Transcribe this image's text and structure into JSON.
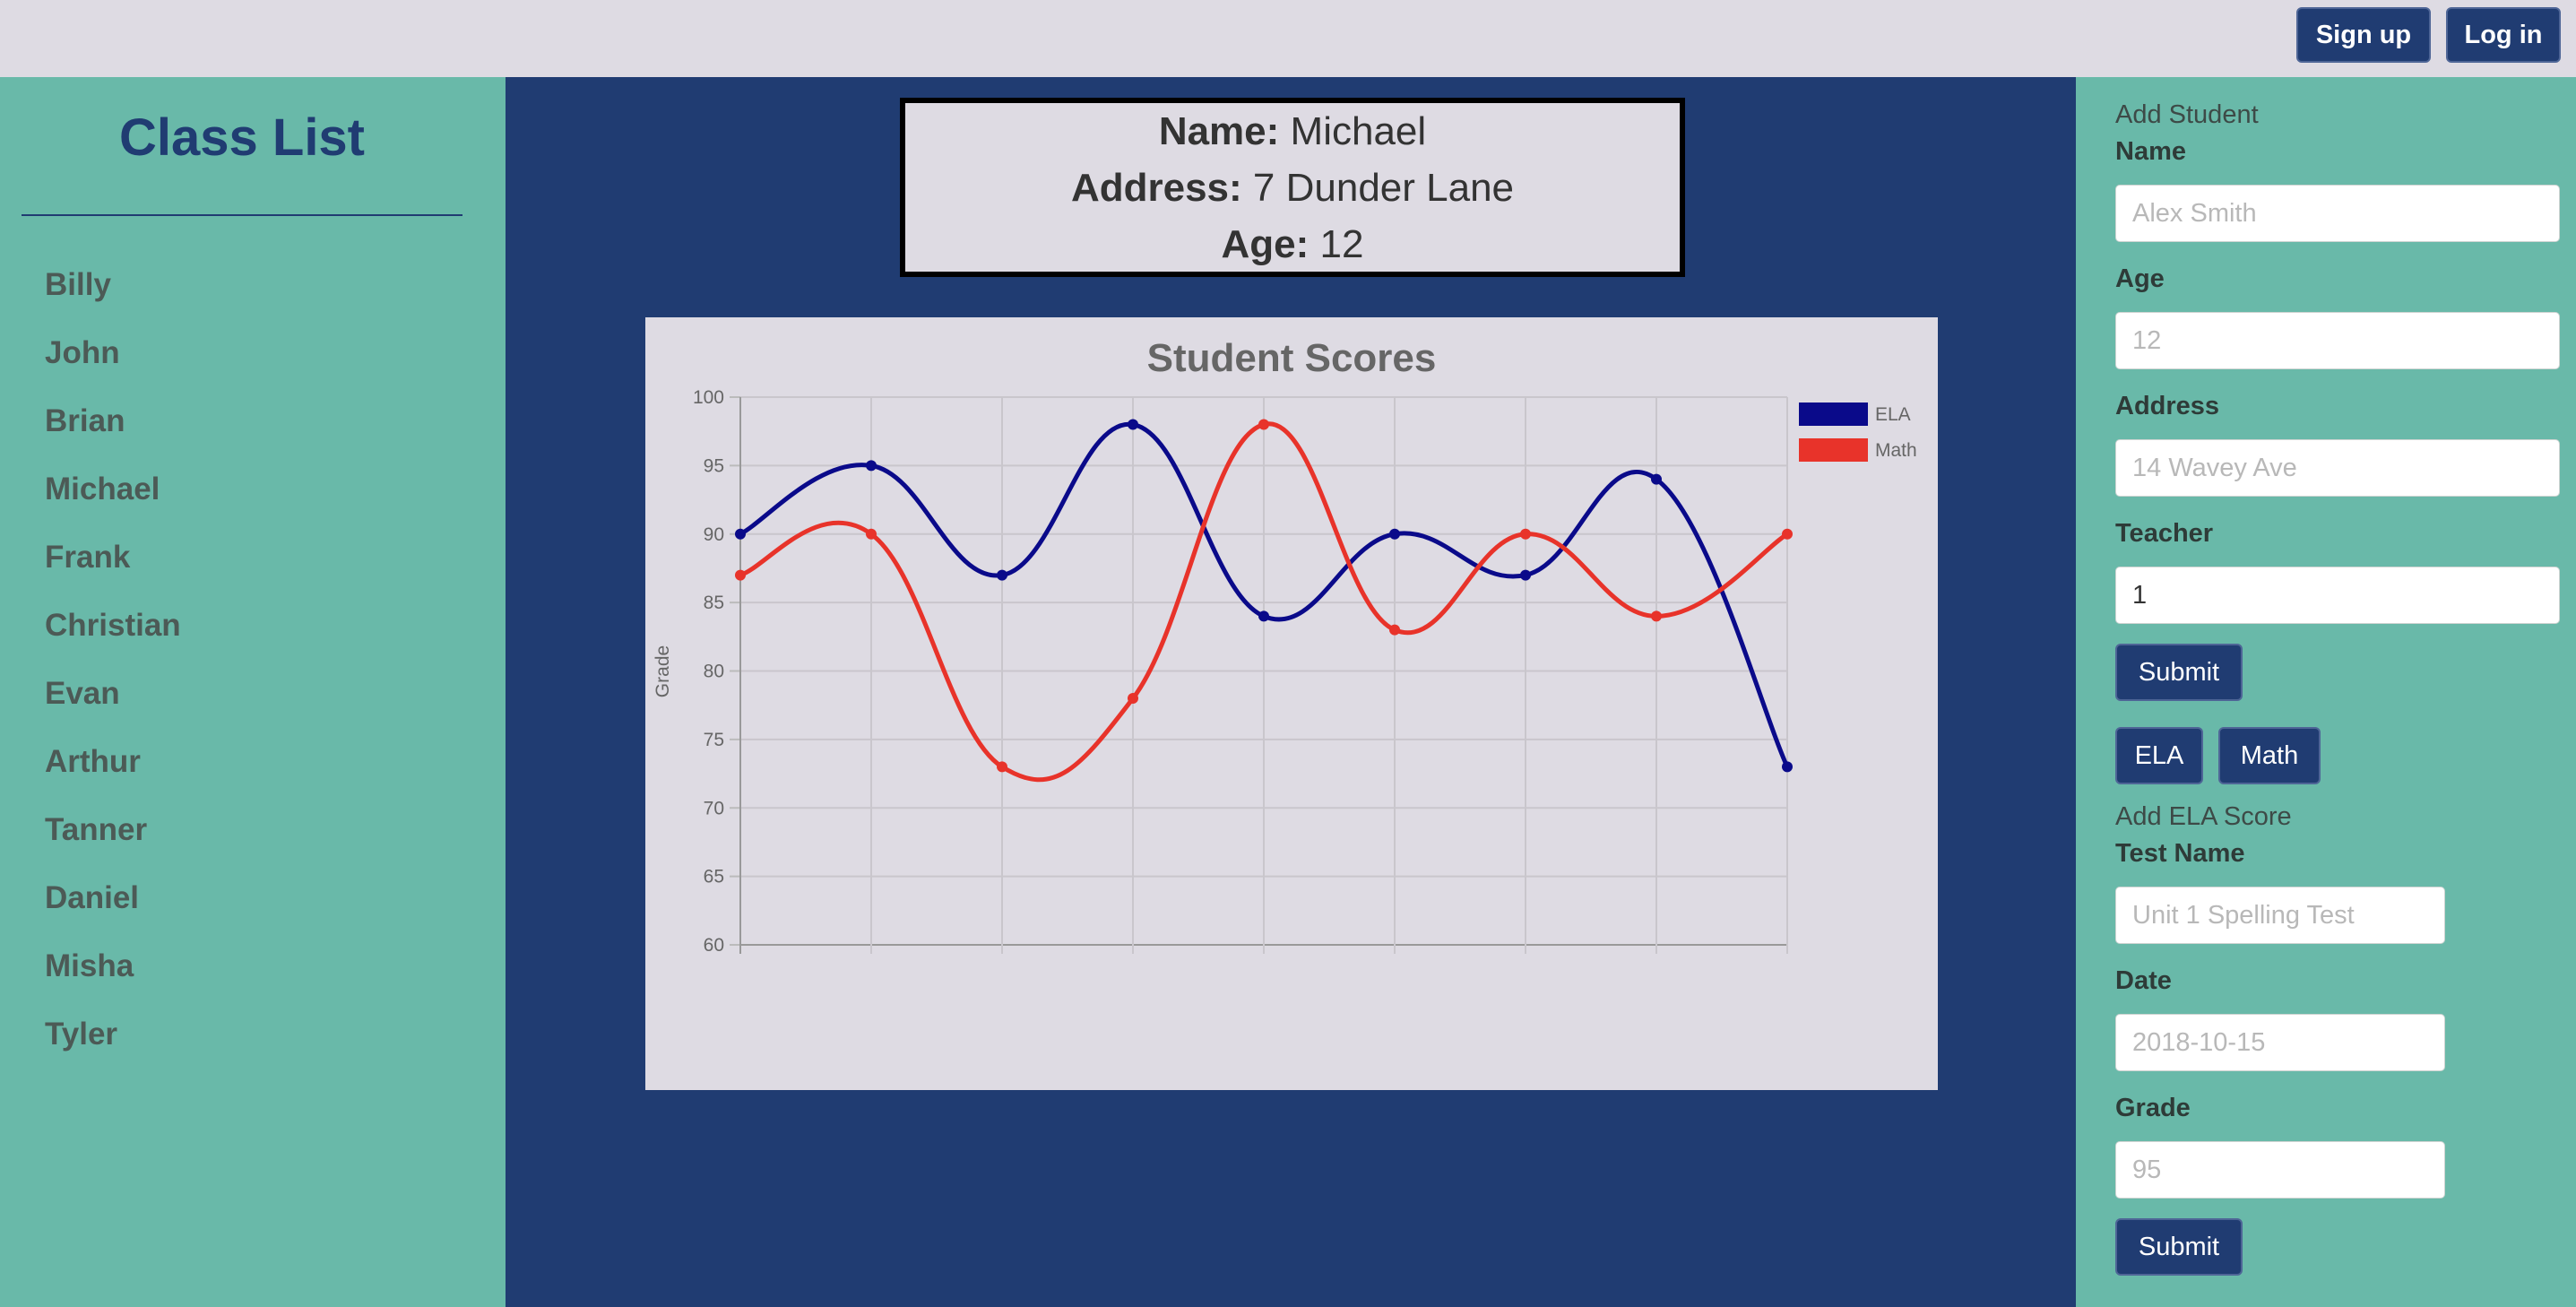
{
  "header": {
    "signup_label": "Sign up",
    "login_label": "Log in"
  },
  "sidebar": {
    "title": "Class List",
    "students": [
      "Billy",
      "John",
      "Brian",
      "Michael",
      "Frank",
      "Christian",
      "Evan",
      "Arthur",
      "Tanner",
      "Daniel",
      "Misha",
      "Tyler"
    ]
  },
  "student_info": {
    "name_label": "Name:",
    "name": "Michael",
    "address_label": "Address:",
    "address": "7 Dunder Lane",
    "age_label": "Age:",
    "age": "12"
  },
  "chart_data": {
    "type": "line",
    "title": "Student Scores",
    "ylabel": "Grade",
    "xlabel": "",
    "ylim": [
      60,
      100
    ],
    "yticks": [
      100,
      95,
      90,
      85,
      80,
      75,
      70,
      65,
      60
    ],
    "grid": true,
    "legend": "top-right",
    "series": [
      {
        "name": "ELA",
        "color": "#0a0a8a",
        "values": [
          90,
          95,
          87,
          98,
          84,
          90,
          87,
          94,
          73
        ]
      },
      {
        "name": "Math",
        "color": "#e8332a",
        "values": [
          87,
          90,
          73,
          78,
          98,
          83,
          90,
          84,
          90
        ]
      }
    ]
  },
  "add_student": {
    "heading": "Add Student",
    "name_label": "Name",
    "name_placeholder": "Alex Smith",
    "age_label": "Age",
    "age_placeholder": "12",
    "address_label": "Address",
    "address_placeholder": "14 Wavey Ave",
    "teacher_label": "Teacher",
    "teacher_value": "1",
    "submit_label": "Submit"
  },
  "score_tabs": {
    "ela_label": "ELA",
    "math_label": "Math"
  },
  "add_score": {
    "heading": "Add ELA Score",
    "test_name_label": "Test Name",
    "test_name_placeholder": "Unit 1 Spelling Test",
    "date_label": "Date",
    "date_placeholder": "2018-10-15",
    "grade_label": "Grade",
    "grade_placeholder": "95",
    "submit_label": "Submit"
  }
}
